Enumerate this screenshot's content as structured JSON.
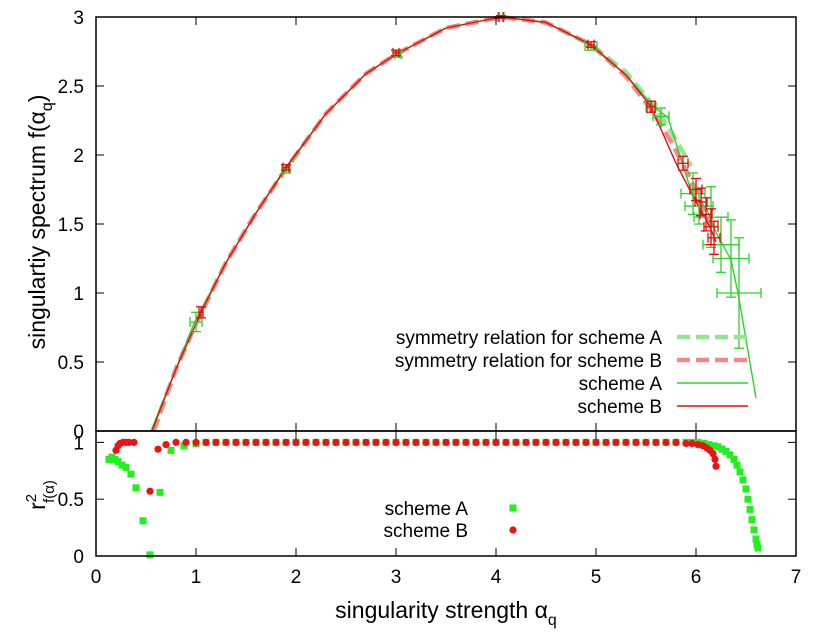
{
  "colors": {
    "scheme_a": "#2fd02f",
    "scheme_b": "#e01010",
    "sym_a": "#8fe88f",
    "sym_b": "#ef8a8a",
    "scatter_a": "#22ee22",
    "scatter_b": "#ee1111"
  },
  "chart_data": [
    {
      "type": "line",
      "ylabel_main": "singulartiy spectrum f(",
      "ylabel_alpha": "α",
      "ylabel_sub": "q",
      "ylabel_close": ")",
      "xlim": [
        0,
        7
      ],
      "ylim": [
        0,
        3
      ],
      "yticks": [
        "0",
        "0.5",
        "1",
        "1.5",
        "2",
        "2.5",
        "3"
      ],
      "series": [
        {
          "name": "symmetry relation for scheme A",
          "style": "dashed",
          "x": [
            0.58,
            0.8,
            1.0,
            1.3,
            1.6,
            1.9,
            2.3,
            2.7,
            3.0,
            3.5,
            4.05,
            4.5,
            4.95,
            5.3,
            5.55,
            5.75,
            5.95
          ],
          "y": [
            0.0,
            0.45,
            0.78,
            1.22,
            1.58,
            1.9,
            2.3,
            2.59,
            2.73,
            2.92,
            3.0,
            2.96,
            2.8,
            2.6,
            2.38,
            2.17,
            1.92
          ]
        },
        {
          "name": "symmetry relation for scheme B",
          "style": "dashed",
          "x": [
            0.57,
            0.8,
            1.0,
            1.3,
            1.6,
            1.9,
            2.3,
            2.7,
            3.0,
            3.5,
            4.05,
            4.5,
            4.95,
            5.3,
            5.55,
            5.75,
            5.95,
            6.15
          ],
          "y": [
            0.0,
            0.45,
            0.78,
            1.22,
            1.58,
            1.9,
            2.3,
            2.59,
            2.73,
            2.92,
            3.0,
            2.96,
            2.8,
            2.57,
            2.33,
            2.1,
            1.82,
            1.48
          ]
        },
        {
          "name": "scheme A",
          "style": "solid",
          "x": [
            0.55,
            0.8,
            0.98,
            1.3,
            1.6,
            1.9,
            2.3,
            2.7,
            3.0,
            3.5,
            4.05,
            4.5,
            4.93,
            5.3,
            5.58,
            5.72,
            5.95,
            6.05,
            6.1,
            6.2,
            6.35,
            6.42,
            6.6
          ],
          "y": [
            0.0,
            0.45,
            0.78,
            1.22,
            1.58,
            1.9,
            2.3,
            2.59,
            2.73,
            2.92,
            3.0,
            2.96,
            2.8,
            2.58,
            2.35,
            2.27,
            1.74,
            1.64,
            1.62,
            1.44,
            1.24,
            1.0,
            0.24
          ]
        },
        {
          "name": "scheme B",
          "style": "solid",
          "x": [
            0.56,
            0.8,
            1.05,
            1.3,
            1.6,
            1.9,
            2.3,
            2.7,
            3.0,
            3.5,
            4.05,
            4.5,
            4.95,
            5.3,
            5.55,
            5.8,
            6.0,
            6.08,
            6.15,
            6.2
          ],
          "y": [
            0.0,
            0.45,
            0.86,
            1.22,
            1.58,
            1.91,
            2.3,
            2.59,
            2.73,
            2.92,
            3.0,
            2.96,
            2.8,
            2.58,
            2.35,
            1.94,
            1.66,
            1.56,
            1.46,
            1.37
          ]
        }
      ],
      "errorbars": [
        {
          "series": "scheme A",
          "points": [
            [
              1.0,
              0.79,
              0.06,
              0.07
            ],
            [
              1.9,
              1.9,
              0.04,
              0.03
            ],
            [
              3.02,
              2.73,
              0.03,
              0.02
            ],
            [
              4.05,
              3.0,
              0.03,
              0.01
            ],
            [
              4.95,
              2.79,
              0.06,
              0.03
            ],
            [
              5.55,
              2.35,
              0.05,
              0.04
            ],
            [
              5.65,
              2.28,
              0.08,
              0.06
            ],
            [
              5.97,
              1.72,
              0.12,
              0.15
            ],
            [
              6.03,
              1.63,
              0.14,
              0.13
            ],
            [
              6.15,
              1.55,
              0.17,
              0.22
            ],
            [
              6.25,
              1.35,
              0.18,
              0.2
            ],
            [
              6.35,
              1.25,
              0.18,
              0.28
            ],
            [
              6.43,
              1.0,
              0.22,
              0.4
            ]
          ]
        },
        {
          "series": "scheme B",
          "points": [
            [
              1.05,
              0.86,
              0.02,
              0.04
            ],
            [
              1.9,
              1.91,
              0.03,
              0.02
            ],
            [
              3.0,
              2.74,
              0.03,
              0.02
            ],
            [
              4.05,
              3.0,
              0.02,
              0.01
            ],
            [
              4.95,
              2.8,
              0.03,
              0.02
            ],
            [
              5.55,
              2.35,
              0.04,
              0.04
            ],
            [
              5.87,
              1.94,
              0.05,
              0.05
            ],
            [
              6.0,
              1.75,
              0.06,
              0.08
            ],
            [
              6.05,
              1.66,
              0.06,
              0.1
            ],
            [
              6.1,
              1.57,
              0.06,
              0.12
            ],
            [
              6.15,
              1.48,
              0.07,
              0.13
            ],
            [
              6.18,
              1.4,
              0.06,
              0.12
            ]
          ]
        }
      ]
    },
    {
      "type": "scatter",
      "xlabel_main": "singularity strength ",
      "xlabel_alpha": "α",
      "xlabel_sub": "q",
      "ylabel_main": "r",
      "ylabel_sup": "2",
      "ylabel_sub": "f(α)",
      "xlim": [
        0,
        7
      ],
      "ylim": [
        0,
        1.1
      ],
      "xticks": [
        "0",
        "1",
        "2",
        "3",
        "4",
        "5",
        "6",
        "7"
      ],
      "yticks": [
        "0",
        "0.5",
        "1"
      ],
      "series": [
        {
          "name": "scheme A",
          "marker": "square",
          "x": [
            0.13,
            0.16,
            0.19,
            0.22,
            0.26,
            0.3,
            0.35,
            0.4,
            0.47,
            0.54,
            0.64,
            0.75,
            0.88,
            1.0,
            1.1,
            1.2,
            1.3,
            1.4,
            1.5,
            1.6,
            1.7,
            1.8,
            1.9,
            2.0,
            2.1,
            2.2,
            2.3,
            2.4,
            2.5,
            2.6,
            2.7,
            2.8,
            2.9,
            3.0,
            3.1,
            3.2,
            3.3,
            3.4,
            3.5,
            3.6,
            3.7,
            3.8,
            3.9,
            4.0,
            4.1,
            4.2,
            4.3,
            4.4,
            4.5,
            4.6,
            4.7,
            4.8,
            4.9,
            5.0,
            5.1,
            5.2,
            5.3,
            5.4,
            5.5,
            5.6,
            5.7,
            5.8,
            5.9,
            5.96,
            6.02,
            6.08,
            6.13,
            6.18,
            6.22,
            6.26,
            6.3,
            6.34,
            6.38,
            6.41,
            6.44,
            6.47,
            6.5,
            6.52,
            6.54,
            6.56,
            6.58,
            6.6,
            6.61,
            6.62
          ],
          "y": [
            0.85,
            0.87,
            0.85,
            0.83,
            0.8,
            0.78,
            0.72,
            0.6,
            0.31,
            0.01,
            0.56,
            0.93,
            0.97,
            0.99,
            1.0,
            1.0,
            1.0,
            1.0,
            1.0,
            1.0,
            1.0,
            1.0,
            1.0,
            1.0,
            1.0,
            1.0,
            1.0,
            1.0,
            1.0,
            1.0,
            1.0,
            1.0,
            1.0,
            1.0,
            1.0,
            1.0,
            1.0,
            1.0,
            1.0,
            1.0,
            1.0,
            1.0,
            1.0,
            1.0,
            1.0,
            1.0,
            1.0,
            1.0,
            1.0,
            1.0,
            1.0,
            1.0,
            1.0,
            1.0,
            1.0,
            1.0,
            1.0,
            1.0,
            1.0,
            1.0,
            1.0,
            1.0,
            1.0,
            1.0,
            1.0,
            0.99,
            0.98,
            0.97,
            0.96,
            0.94,
            0.92,
            0.89,
            0.85,
            0.8,
            0.74,
            0.67,
            0.59,
            0.5,
            0.41,
            0.32,
            0.23,
            0.15,
            0.1,
            0.07
          ]
        },
        {
          "name": "scheme B",
          "marker": "circle",
          "x": [
            0.2,
            0.22,
            0.24,
            0.27,
            0.3,
            0.33,
            0.38,
            0.54,
            0.62,
            0.7,
            0.8,
            0.9,
            1.0,
            1.1,
            1.2,
            1.3,
            1.4,
            1.5,
            1.6,
            1.7,
            1.8,
            1.9,
            2.0,
            2.1,
            2.2,
            2.3,
            2.4,
            2.5,
            2.6,
            2.7,
            2.8,
            2.9,
            3.0,
            3.1,
            3.2,
            3.3,
            3.4,
            3.5,
            3.6,
            3.7,
            3.8,
            3.9,
            4.0,
            4.1,
            4.2,
            4.3,
            4.4,
            4.5,
            4.6,
            4.7,
            4.8,
            4.9,
            5.0,
            5.1,
            5.2,
            5.3,
            5.4,
            5.5,
            5.6,
            5.7,
            5.8,
            5.9,
            5.96,
            6.02,
            6.07,
            6.11,
            6.14,
            6.17,
            6.19,
            6.2
          ],
          "y": [
            0.93,
            0.97,
            0.99,
            1.0,
            1.0,
            1.0,
            1.0,
            0.57,
            0.94,
            0.98,
            1.0,
            1.0,
            1.0,
            1.0,
            1.0,
            1.0,
            1.0,
            1.0,
            1.0,
            1.0,
            1.0,
            1.0,
            1.0,
            1.0,
            1.0,
            1.0,
            1.0,
            1.0,
            1.0,
            1.0,
            1.0,
            1.0,
            1.0,
            1.0,
            1.0,
            1.0,
            1.0,
            1.0,
            1.0,
            1.0,
            1.0,
            1.0,
            1.0,
            1.0,
            1.0,
            1.0,
            1.0,
            1.0,
            1.0,
            1.0,
            1.0,
            1.0,
            1.0,
            1.0,
            1.0,
            1.0,
            1.0,
            1.0,
            1.0,
            1.0,
            1.0,
            0.99,
            0.99,
            0.98,
            0.97,
            0.95,
            0.93,
            0.9,
            0.85,
            0.79
          ]
        }
      ]
    }
  ]
}
